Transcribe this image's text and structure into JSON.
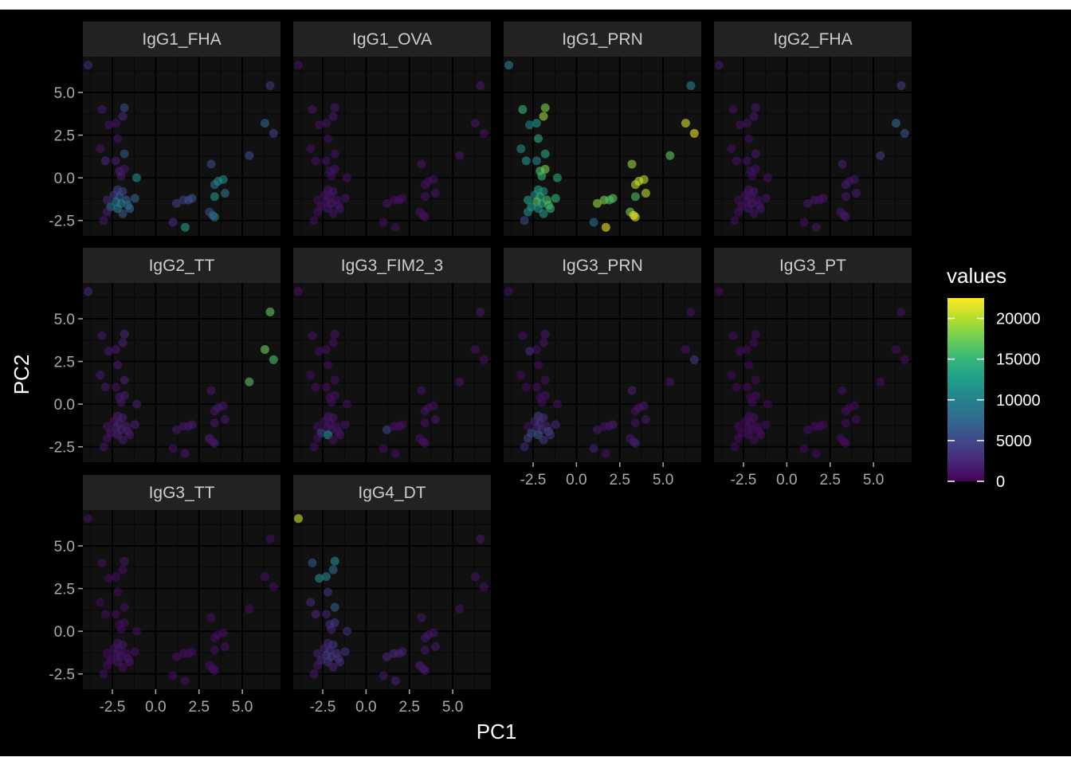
{
  "chart_data": {
    "type": "scatter",
    "xlabel": "PC1",
    "ylabel": "PC2",
    "x_ticks": [
      "-2.5",
      "0.0",
      "2.5",
      "5.0"
    ],
    "y_ticks": [
      "5.0",
      "2.5",
      "0.0",
      "-2.5"
    ],
    "xlim": [
      -4.2,
      7.2
    ],
    "ylim": [
      -3.4,
      7.1
    ],
    "grid": true,
    "legend": {
      "title": "values",
      "position": "right",
      "type": "colorbar",
      "min": 0,
      "max": 22500,
      "breaks": [
        {
          "value": 0,
          "label": "0"
        },
        {
          "value": 5000,
          "label": "5000"
        },
        {
          "value": 10000,
          "label": "10000"
        },
        {
          "value": 15000,
          "label": "15000"
        },
        {
          "value": 20000,
          "label": "20000"
        }
      ],
      "colormap": "viridis",
      "colors": [
        "#440154",
        "#482878",
        "#3e4a89",
        "#31688e",
        "#26828e",
        "#1f9e89",
        "#35b779",
        "#6ece58",
        "#b5de2b",
        "#fde725"
      ]
    },
    "theme": {
      "background": "#000000",
      "panel": "#111111",
      "strip": "#222222",
      "major_grid": "#000000",
      "minor_grid": "#080808",
      "point_alpha": 0.6
    },
    "points": [
      [
        -3.9,
        6.6
      ],
      [
        6.6,
        5.4
      ],
      [
        -3.1,
        4.0
      ],
      [
        -1.8,
        4.1
      ],
      [
        -2.3,
        3.2
      ],
      [
        -1.9,
        3.6
      ],
      [
        -2.7,
        3.1
      ],
      [
        6.3,
        3.2
      ],
      [
        -2.2,
        2.3
      ],
      [
        6.8,
        2.6
      ],
      [
        -3.2,
        1.7
      ],
      [
        5.4,
        1.3
      ],
      [
        -1.8,
        1.4
      ],
      [
        -2.9,
        1.0
      ],
      [
        -2.3,
        1.0
      ],
      [
        -2.1,
        0.4
      ],
      [
        -1.8,
        0.5
      ],
      [
        -2.0,
        0.1
      ],
      [
        -1.1,
        0.0
      ],
      [
        3.2,
        0.8
      ],
      [
        3.9,
        -0.1
      ],
      [
        3.6,
        -0.2
      ],
      [
        3.4,
        -0.4
      ],
      [
        -2.2,
        -0.7
      ],
      [
        -1.9,
        -0.8
      ],
      [
        -2.4,
        -1.0
      ],
      [
        -2.1,
        -1.1
      ],
      [
        -1.7,
        -1.3
      ],
      [
        -2.3,
        -1.4
      ],
      [
        -2.8,
        -1.3
      ],
      [
        -1.2,
        -1.2
      ],
      [
        -2.0,
        -1.5
      ],
      [
        -1.6,
        -1.6
      ],
      [
        -2.2,
        -1.8
      ],
      [
        -2.6,
        -1.7
      ],
      [
        -1.5,
        -1.8
      ],
      [
        -1.9,
        -2.1
      ],
      [
        -2.8,
        -2.0
      ],
      [
        -3.0,
        -2.5
      ],
      [
        1.2,
        -1.5
      ],
      [
        1.6,
        -1.3
      ],
      [
        2.1,
        -1.2
      ],
      [
        1.9,
        -1.3
      ],
      [
        3.4,
        -1.1
      ],
      [
        4.0,
        -0.9
      ],
      [
        3.1,
        -2.0
      ],
      [
        3.4,
        -2.3
      ],
      [
        3.3,
        -2.2
      ],
      [
        1.0,
        -2.6
      ],
      [
        1.7,
        -2.9
      ]
    ],
    "panels": [
      {
        "label": "IgG1_FHA",
        "values": [
          2500,
          3500,
          1500,
          5000,
          1000,
          2500,
          1000,
          7500,
          1000,
          4500,
          1000,
          5500,
          6000,
          2500,
          2000,
          2000,
          1500,
          2000,
          11000,
          5000,
          11500,
          11000,
          9000,
          4500,
          5000,
          4000,
          6000,
          7000,
          8500,
          2500,
          7500,
          9500,
          7500,
          10000,
          9000,
          8000,
          6000,
          2000,
          1500,
          4500,
          4000,
          6000,
          5500,
          12000,
          8500,
          5000,
          9000,
          7500,
          3000,
          12500
        ]
      },
      {
        "label": "IgG1_OVA",
        "values": [
          1000,
          1500,
          1200,
          1500,
          1000,
          1500,
          800,
          1200,
          700,
          1000,
          800,
          1200,
          1000,
          800,
          1000,
          900,
          1200,
          800,
          1000,
          1200,
          1000,
          900,
          1000,
          1200,
          1500,
          1100,
          1200,
          1000,
          1300,
          900,
          1100,
          1400,
          1200,
          1500,
          1100,
          1200,
          1000,
          800,
          900,
          1200,
          1000,
          900,
          1100,
          1000,
          1200,
          1000,
          1100,
          1000,
          800,
          900
        ]
      },
      {
        "label": "IgG1_PRN",
        "values": [
          10000,
          10000,
          15000,
          18000,
          12000,
          19000,
          10000,
          21000,
          14000,
          22000,
          11000,
          17000,
          14000,
          12000,
          10000,
          16000,
          18000,
          15000,
          14000,
          19000,
          20000,
          21000,
          20000,
          13000,
          12000,
          11000,
          14000,
          16000,
          17000,
          13000,
          15000,
          14000,
          16000,
          12000,
          13000,
          15000,
          12000,
          11000,
          5000,
          19000,
          18000,
          17000,
          16000,
          16000,
          20000,
          18000,
          21000,
          22000,
          8000,
          22000
        ]
      },
      {
        "label": "IgG2_FHA",
        "values": [
          1500,
          4000,
          1000,
          1500,
          1000,
          1500,
          1000,
          8000,
          800,
          6000,
          800,
          4000,
          1500,
          1000,
          1000,
          900,
          1000,
          800,
          1000,
          2000,
          1500,
          1200,
          1800,
          1500,
          1500,
          1100,
          1200,
          1000,
          1300,
          900,
          1100,
          1400,
          1200,
          1500,
          1100,
          1200,
          1000,
          800,
          900,
          1500,
          1500,
          1200,
          1100,
          1500,
          1800,
          1500,
          1500,
          1400,
          1000,
          1200
        ]
      },
      {
        "label": "IgG2_TT",
        "values": [
          2500,
          17000,
          1500,
          2500,
          1500,
          2000,
          1500,
          17500,
          1500,
          16000,
          1500,
          16500,
          2000,
          1500,
          1000,
          1500,
          1800,
          1500,
          2000,
          1500,
          1500,
          1800,
          1500,
          2000,
          2000,
          1500,
          2000,
          2000,
          2500,
          1200,
          2000,
          2200,
          1800,
          2000,
          1800,
          1500,
          1800,
          1000,
          1200,
          1500,
          1500,
          1800,
          1500,
          1200,
          1500,
          2000,
          1500,
          1200,
          1000,
          1500
        ]
      },
      {
        "label": "IgG3_FIM2_3",
        "values": [
          1000,
          1200,
          1000,
          1200,
          800,
          1000,
          800,
          1000,
          700,
          1000,
          700,
          1200,
          1000,
          800,
          800,
          800,
          1000,
          800,
          1000,
          1000,
          1000,
          900,
          1000,
          1200,
          1500,
          1100,
          1200,
          1000,
          1300,
          900,
          1100,
          1400,
          1200,
          12000,
          5000,
          1200,
          1000,
          800,
          900,
          4500,
          1000,
          900,
          1100,
          1000,
          1200,
          1000,
          1100,
          1000,
          800,
          900
        ]
      },
      {
        "label": "IgG3_PRN",
        "values": [
          800,
          1000,
          800,
          1500,
          800,
          1200,
          3000,
          1000,
          700,
          4000,
          700,
          1000,
          1000,
          700,
          800,
          700,
          1000,
          700,
          1000,
          2000,
          1500,
          1200,
          1000,
          4500,
          3000,
          2500,
          3000,
          2000,
          2500,
          900,
          2500,
          3000,
          5000,
          6000,
          5500,
          3000,
          3500,
          4500,
          2500,
          1500,
          1000,
          2000,
          1200,
          1000,
          1500,
          1500,
          2000,
          1500,
          2000,
          1000
        ]
      },
      {
        "label": "IgG3_PT",
        "values": [
          700,
          800,
          700,
          800,
          600,
          700,
          600,
          800,
          500,
          900,
          500,
          800,
          700,
          600,
          600,
          600,
          700,
          600,
          700,
          800,
          700,
          600,
          700,
          800,
          1000,
          700,
          800,
          700,
          900,
          600,
          700,
          900,
          800,
          900,
          700,
          800,
          700,
          600,
          600,
          800,
          700,
          600,
          700,
          700,
          800,
          700,
          700,
          700,
          600,
          600
        ]
      },
      {
        "label": "IgG3_TT",
        "values": [
          800,
          900,
          800,
          1200,
          700,
          900,
          700,
          1000,
          600,
          900,
          600,
          900,
          800,
          700,
          700,
          700,
          900,
          700,
          900,
          900,
          800,
          700,
          800,
          1200,
          1500,
          1100,
          1200,
          1000,
          1300,
          800,
          1100,
          1400,
          1200,
          1500,
          1100,
          1200,
          1000,
          700,
          800,
          1000,
          900,
          800,
          900,
          900,
          1000,
          900,
          900,
          900,
          700,
          800
        ]
      },
      {
        "label": "IgG4_DT",
        "values": [
          21000,
          1500,
          6000,
          11000,
          10000,
          8000,
          11000,
          1200,
          3500,
          1000,
          2500,
          1000,
          6500,
          2500,
          2000,
          3000,
          4000,
          2500,
          3000,
          1500,
          1500,
          1200,
          1500,
          2500,
          3500,
          2500,
          3000,
          3500,
          4000,
          2000,
          3000,
          4000,
          3000,
          3500,
          2500,
          3000,
          2000,
          1500,
          1500,
          2500,
          2500,
          2000,
          2200,
          1500,
          1500,
          2000,
          1500,
          1500,
          1500,
          2000
        ]
      }
    ]
  }
}
